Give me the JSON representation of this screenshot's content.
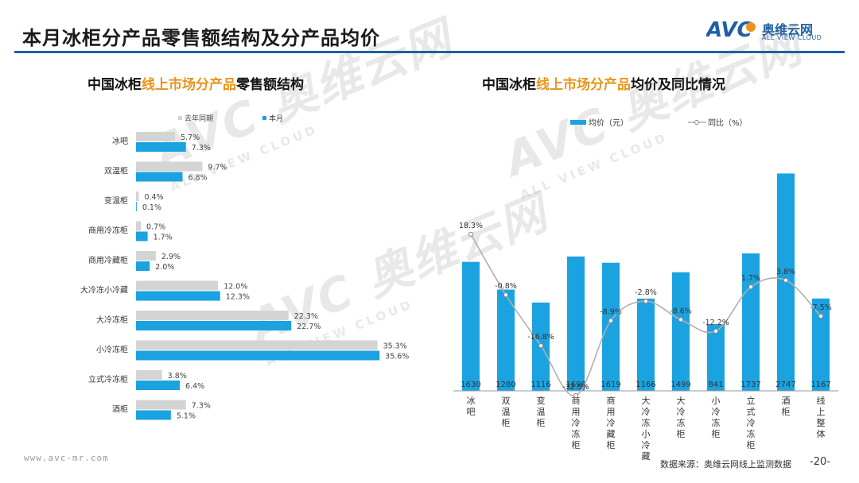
{
  "header": {
    "title": "本月冰柜分产品零售额结构及分产品均价"
  },
  "logo": {
    "brand": "奥维云网",
    "tagline": "ALL VIEW CLOUD",
    "mark": "AVC"
  },
  "watermark": {
    "big": "AVC 奥维云网",
    "small": "ALL VIEW CLOUD"
  },
  "colors": {
    "current": "#1aa3e0",
    "previous": "#d4d4d4",
    "line": "#b0b0b0",
    "accent": "#e8941a",
    "brand": "#1f5fa6"
  },
  "left_chart": {
    "title_pre": "中国冰柜",
    "title_hl": "线上市场分产品",
    "title_post": "零售额结构"
  },
  "right_chart": {
    "title_pre": "中国冰柜",
    "title_hl": "线上市场分产品",
    "title_post": "均价及同比情况"
  },
  "chart_data": [
    {
      "type": "bar",
      "orientation": "horizontal",
      "categories": [
        "冰吧",
        "双温柜",
        "变温柜",
        "商用冷冻柜",
        "商用冷藏柜",
        "大冷冻小冷藏",
        "大冷冻柜",
        "小冷冻柜",
        "立式冷冻柜",
        "酒柜"
      ],
      "series": [
        {
          "name": "去年同期",
          "values": [
            5.7,
            9.7,
            0.4,
            0.7,
            2.9,
            12.0,
            22.3,
            35.3,
            3.8,
            7.3
          ],
          "labels": [
            "5.7%",
            "9.7%",
            "0.4%",
            "0.7%",
            "2.9%",
            "12.0%",
            "22.3%",
            "35.3%",
            "3.8%",
            "7.3%"
          ]
        },
        {
          "name": "本月",
          "values": [
            7.3,
            6.8,
            0.1,
            1.7,
            2.0,
            12.3,
            22.7,
            35.6,
            6.4,
            5.1
          ],
          "labels": [
            "7.3%",
            "6.8%",
            "0.1%",
            "1.7%",
            "2.0%",
            "12.3%",
            "22.7%",
            "35.6%",
            "6.4%",
            "5.1%"
          ]
        }
      ],
      "legend_position": "top"
    },
    {
      "type": "bar",
      "categories": [
        "冰吧",
        "双温柜",
        "变温柜",
        "商用冷冻柜",
        "商用冷藏柜",
        "大冷冻小冷藏",
        "大冷冻柜",
        "小冷冻柜",
        "立式冷冻柜",
        "酒柜",
        "线上整体"
      ],
      "series": [
        {
          "name": "均价（元）",
          "type": "bar",
          "values": [
            1630,
            1280,
            1116,
            1698,
            1619,
            1166,
            1499,
            841,
            1737,
            2747,
            1167
          ],
          "labels": [
            "1630",
            "1280",
            "1116",
            "1698",
            "1619",
            "1166",
            "1499",
            "841",
            "1737",
            "2747",
            "1167"
          ]
        },
        {
          "name": "同比（%）",
          "type": "line",
          "values": [
            18.3,
            -0.8,
            -16.8,
            -32.5,
            -8.9,
            -2.8,
            -8.6,
            -12.2,
            1.7,
            3.8,
            -7.5
          ],
          "labels": [
            "18.3%",
            "-0.8%",
            "-16.8%",
            "-32.5%",
            "-8.9%",
            "-2.8%",
            "-8.6%",
            "-12.2%",
            "1.7%",
            "3.8%",
            "-7.5%"
          ]
        }
      ],
      "legend_position": "top"
    }
  ],
  "footer": {
    "url": "www.avc-mr.com",
    "source": "数据来源：奥维云网线上监测数据",
    "page": "-20-"
  }
}
